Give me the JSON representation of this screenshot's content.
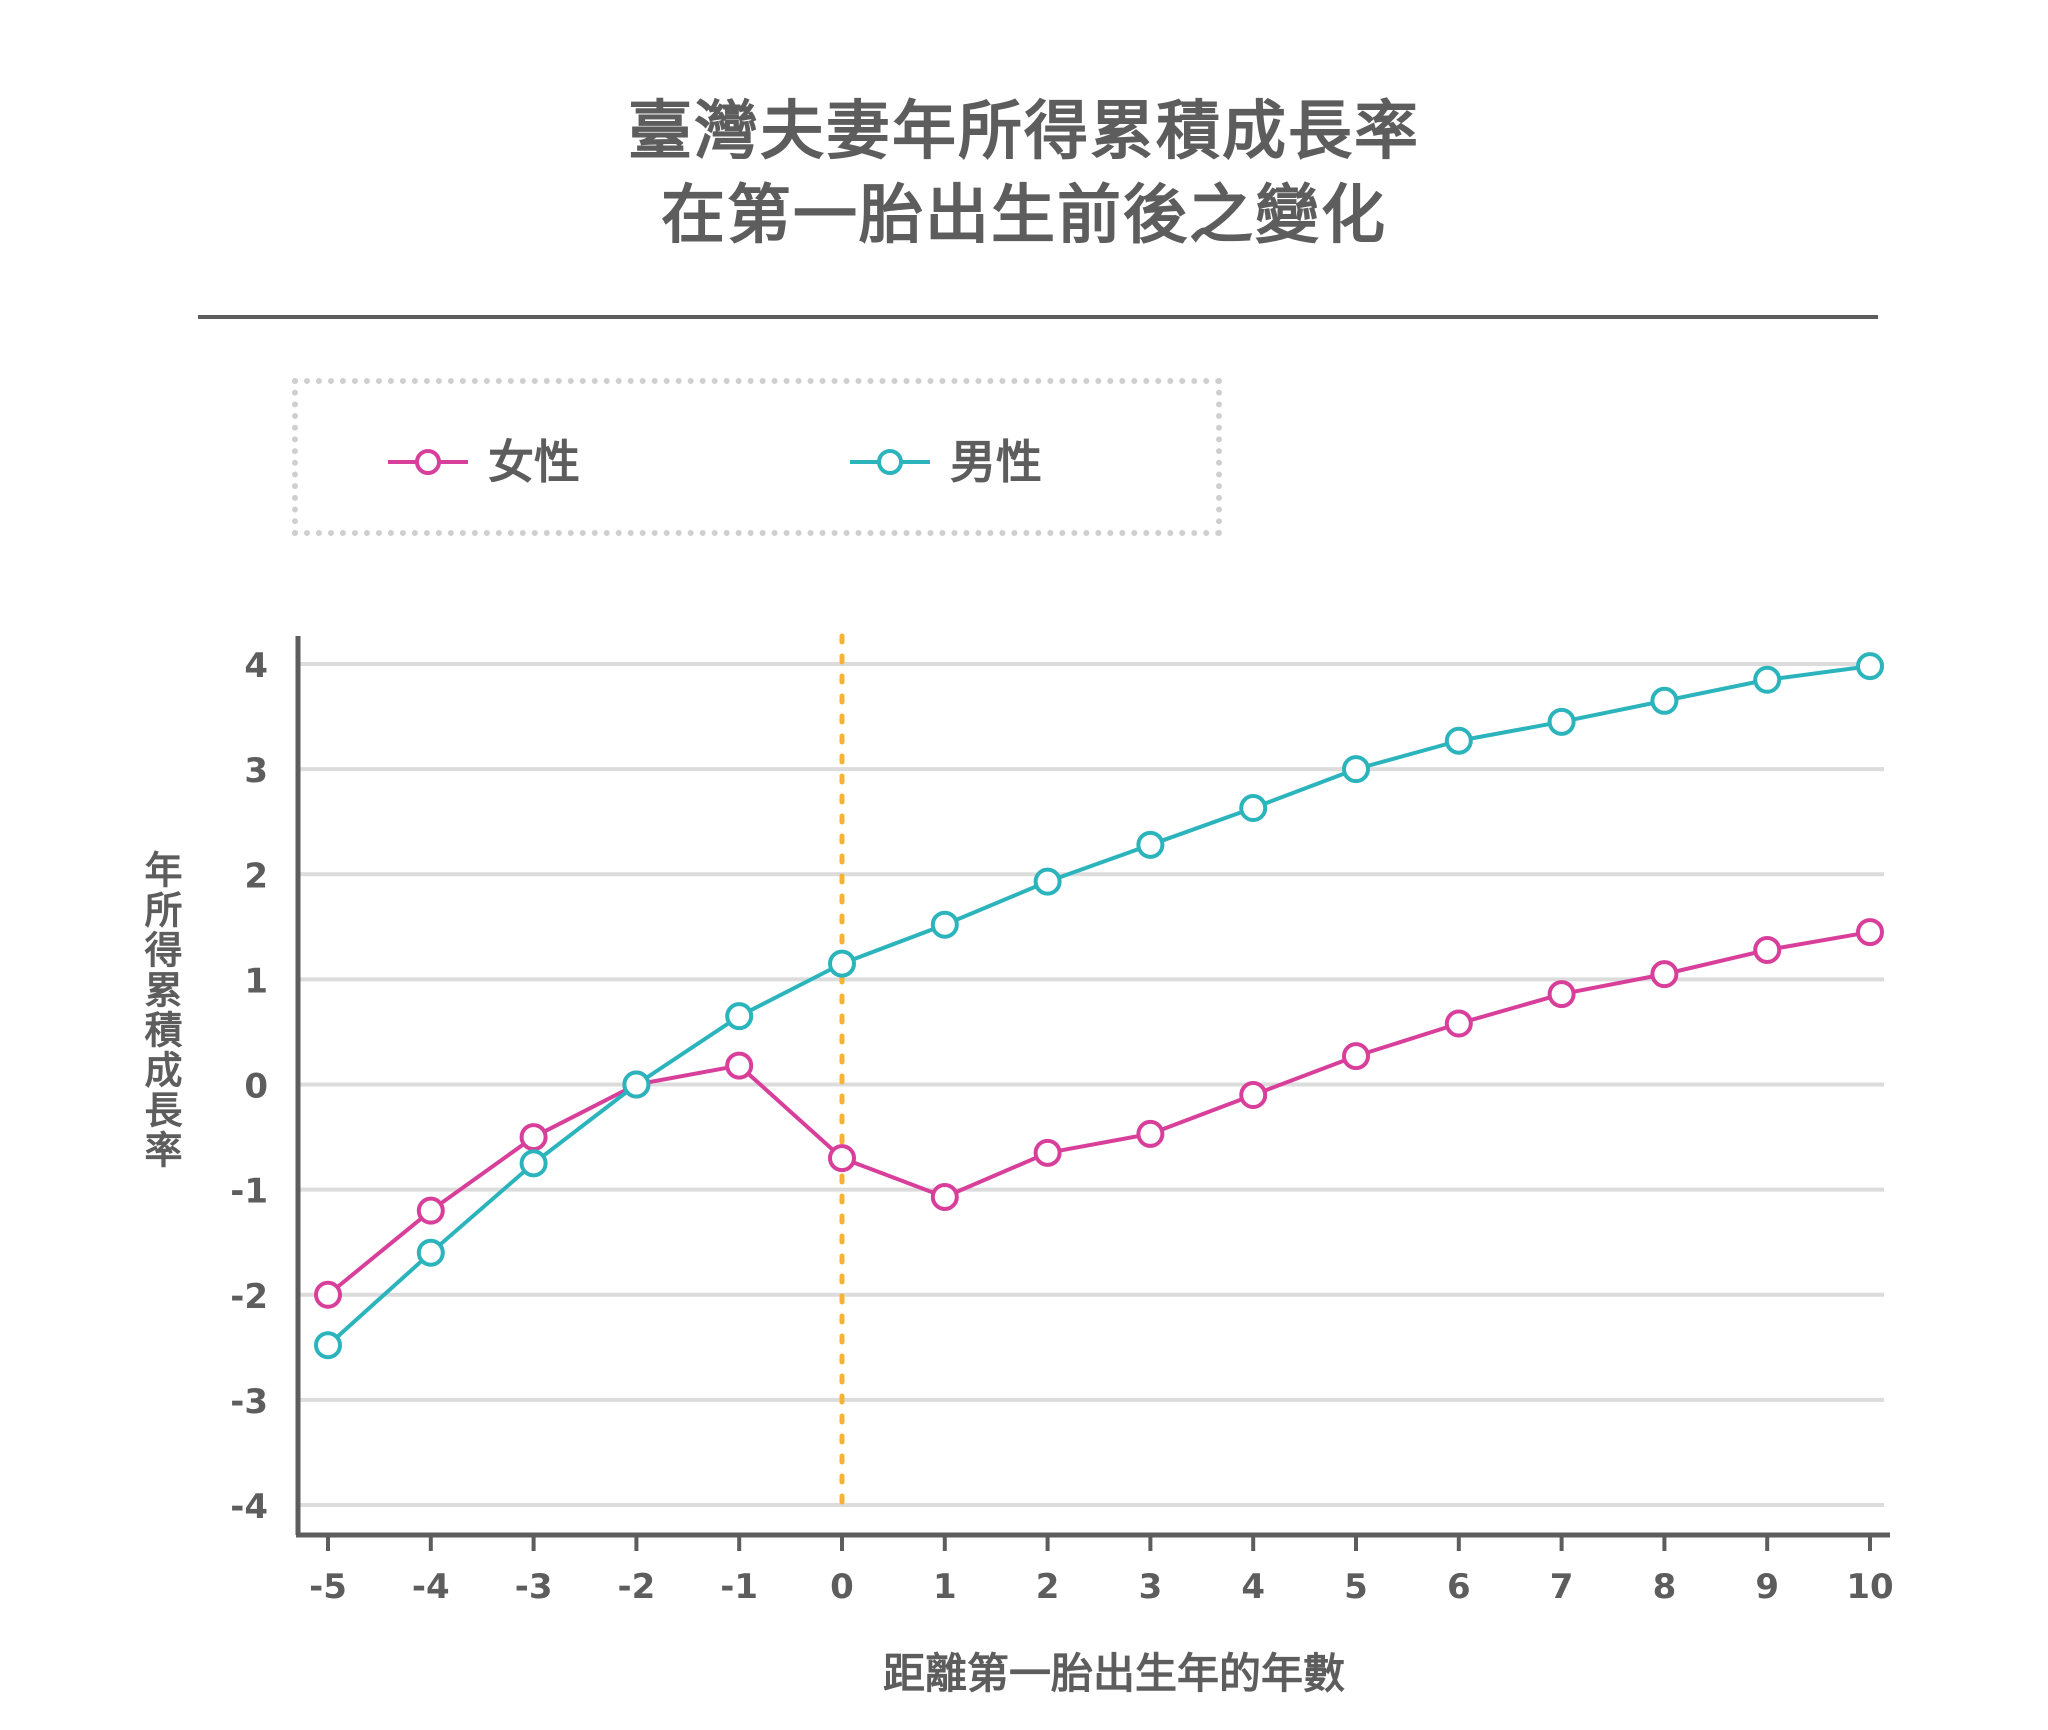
{
  "chart_data": {
    "type": "line",
    "title": [
      "臺灣夫妻年所得累積成長率",
      "在第一胎出生前後之變化"
    ],
    "xlabel": "距離第一胎出生年的年數",
    "ylabel": "年所得累積成長率",
    "x": [
      -5,
      -4,
      -3,
      -2,
      -1,
      0,
      1,
      2,
      3,
      4,
      5,
      6,
      7,
      8,
      9,
      10
    ],
    "xticks": [
      "-5",
      "-4",
      "-3",
      "-2",
      "-1",
      "0",
      "1",
      "2",
      "3",
      "4",
      "5",
      "6",
      "7",
      "8",
      "9",
      "10"
    ],
    "yticks": [
      "4",
      "3",
      "2",
      "1",
      "0",
      "-1",
      "-2",
      "-3",
      "-4"
    ],
    "ylim": [
      -4,
      4
    ],
    "xlim": [
      -5,
      10
    ],
    "grid": true,
    "reference_line": {
      "x": 0,
      "style": "dotted",
      "color": "#f5b335"
    },
    "legend_position": "top-left",
    "series": [
      {
        "name": "女性",
        "color": "#d83f9a",
        "values": [
          -2.0,
          -1.2,
          -0.5,
          0.0,
          0.18,
          -0.7,
          -1.07,
          -0.65,
          -0.47,
          -0.1,
          0.27,
          0.58,
          0.86,
          1.05,
          1.28,
          1.45
        ]
      },
      {
        "name": "男性",
        "color": "#2cb4bd",
        "values": [
          -2.48,
          -1.6,
          -0.75,
          0.0,
          0.65,
          1.15,
          1.52,
          1.93,
          2.28,
          2.63,
          3.0,
          3.27,
          3.45,
          3.65,
          3.85,
          3.98
        ]
      }
    ]
  },
  "legend": {
    "female_label": "女性",
    "male_label": "男性"
  },
  "colors": {
    "text": "#5d5d5d",
    "grid": "#dcdcdc",
    "axis": "#5d5d5d"
  }
}
